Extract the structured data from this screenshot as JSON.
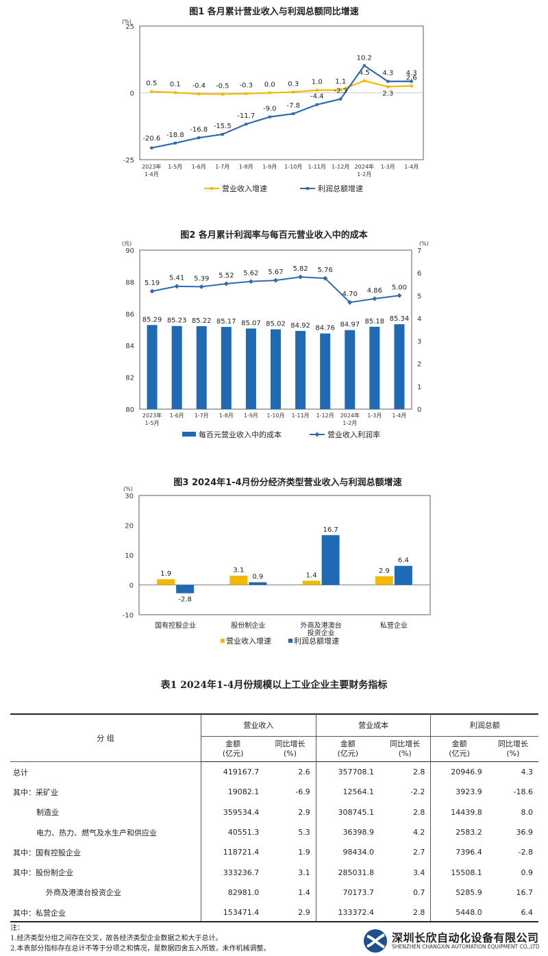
{
  "chart_data": [
    {
      "type": "line",
      "title": "图1  各月累计营业收入与利润总额同比增速",
      "ylabel": "(%)",
      "ylim": [
        -25,
        25
      ],
      "yticks": [
        "25",
        "0",
        "-25"
      ],
      "categories": [
        "2023年\n1-4月",
        "1-5月",
        "1-6月",
        "1-7月",
        "1-8月",
        "1-9月",
        "1-10月",
        "1-11月",
        "1-12月",
        "2024年\n1-2月",
        "1-3月",
        "1-4月"
      ],
      "series": [
        {
          "name": "营业收入增速",
          "color": "#f5b800",
          "values": [
            0.5,
            0.1,
            -0.4,
            -0.5,
            -0.3,
            0.0,
            0.3,
            1.0,
            1.1,
            4.5,
            2.3,
            2.6
          ],
          "labels": [
            "0.5",
            "0.1",
            "-0.4",
            "-0.5",
            "-0.3",
            "0.0",
            "0.3",
            "1.0",
            "1.1",
            "4.5",
            "2.3",
            "2.6"
          ]
        },
        {
          "name": "利润总额增速",
          "color": "#2e6aad",
          "values": [
            -20.6,
            -18.8,
            -16.8,
            -15.5,
            -11.7,
            -9.0,
            -7.8,
            -4.4,
            -2.3,
            10.2,
            4.3,
            4.3
          ],
          "labels": [
            "-20.6",
            "-18.8",
            "-16.8",
            "-15.5",
            "-11.7",
            "-9.0",
            "-7.8",
            "-4.4",
            "-2.3",
            "10.2",
            "4.3",
            "4.3"
          ]
        }
      ],
      "legend": "bottom"
    },
    {
      "type": "bar",
      "title": "图2  各月累计利润率与每百元营业收入中的成本",
      "ylabel": "(元)",
      "y2label": "(%)",
      "ylim": [
        80,
        90
      ],
      "y2lim": [
        0,
        7
      ],
      "yticks": [
        "90",
        "88",
        "86",
        "84",
        "82",
        "80"
      ],
      "y2ticks": [
        "7",
        "6",
        "5",
        "4",
        "3",
        "2",
        "1",
        "0"
      ],
      "categories": [
        "2023年\n1-5月",
        "1-6月",
        "1-7月",
        "1-8月",
        "1-9月",
        "1-10月",
        "1-11月",
        "1-12月",
        "2024年\n1-2月",
        "1-3月",
        "1-4月"
      ],
      "series": [
        {
          "name": "每百元营业收入中的成本",
          "type": "bar",
          "color": "#1f6ab5",
          "values": [
            85.29,
            85.23,
            85.22,
            85.17,
            85.07,
            85.02,
            84.92,
            84.76,
            84.97,
            85.18,
            85.34
          ],
          "labels": [
            "85.29",
            "85.23",
            "85.22",
            "85.17",
            "85.07",
            "85.02",
            "84.92",
            "84.76",
            "84.97",
            "85.18",
            "85.34"
          ]
        },
        {
          "name": "营业收入利润率",
          "type": "line",
          "axis": "right",
          "color": "#2e6aad",
          "values": [
            5.19,
            5.41,
            5.39,
            5.52,
            5.62,
            5.67,
            5.82,
            5.76,
            4.7,
            4.86,
            5.0
          ],
          "labels": [
            "5.19",
            "5.41",
            "5.39",
            "5.52",
            "5.62",
            "5.67",
            "5.82",
            "5.76",
            "4.70",
            "4.86",
            "5.00"
          ]
        }
      ],
      "legend": "bottom"
    },
    {
      "type": "bar",
      "title": "图3  2024年1-4月份分经济类型营业收入与利润总额增速",
      "ylabel": "(%)",
      "ylim": [
        -10,
        30
      ],
      "yticks": [
        "30",
        "20",
        "10",
        "0",
        "-10"
      ],
      "categories": [
        "国有控股企业",
        "股份制企业",
        "外商及港澳台\n投资企业",
        "私营企业"
      ],
      "series": [
        {
          "name": "营业收入增速",
          "color": "#f5b800",
          "values": [
            1.9,
            3.1,
            1.4,
            2.9
          ],
          "labels": [
            "1.9",
            "3.1",
            "1.4",
            "2.9"
          ]
        },
        {
          "name": "利润总额增速",
          "color": "#1f6ab5",
          "values": [
            -2.8,
            0.9,
            16.7,
            6.4
          ],
          "labels": [
            "-2.8",
            "0.9",
            "16.7",
            "6.4"
          ]
        }
      ],
      "legend": "bottom"
    }
  ],
  "table": {
    "title": "表1    2024年1-4月份规模以上工业企业主要财务指标",
    "group_header": "分    组",
    "col_groups": [
      "营业收入",
      "营业成本",
      "利润总额"
    ],
    "amount_label": "金额",
    "amount_unit": "(亿元)",
    "growth_label": "同比增长",
    "growth_unit": "(%)",
    "rows": [
      {
        "label": "总计",
        "v": [
          "419167.7",
          "2.6",
          "357708.1",
          "2.8",
          "20946.9",
          "4.3"
        ]
      },
      {
        "label": "其中：采矿业",
        "v": [
          "19082.1",
          "-6.9",
          "12564.1",
          "-2.2",
          "3923.9",
          "-18.6"
        ]
      },
      {
        "label": "制造业",
        "v": [
          "359534.4",
          "2.9",
          "308745.1",
          "2.8",
          "14439.8",
          "8.0"
        ]
      },
      {
        "label": "电力、热力、燃气及水生产和供应业",
        "v": [
          "40551.3",
          "5.3",
          "36398.9",
          "4.2",
          "2583.2",
          "36.9"
        ]
      },
      {
        "label": "其中：国有控股企业",
        "v": [
          "118721.4",
          "1.9",
          "98434.0",
          "2.7",
          "7396.4",
          "-2.8"
        ]
      },
      {
        "label": "其中：股份制企业",
        "v": [
          "333236.7",
          "3.1",
          "285031.8",
          "3.4",
          "15508.1",
          "0.9"
        ]
      },
      {
        "label": "外商及港澳台投资企业",
        "v": [
          "82981.0",
          "1.4",
          "70173.7",
          "0.7",
          "5285.9",
          "16.7"
        ]
      },
      {
        "label": "其中：私营企业",
        "v": [
          "153471.4",
          "2.9",
          "133372.4",
          "2.8",
          "5448.0",
          "6.4"
        ]
      }
    ]
  },
  "notes": {
    "head": "注：",
    "lines": [
      "1.经济类型分组之间存在交叉，故各经济类型企业数据之和大于总计。",
      "2.本表部分指标存在总计不等于分项之和情况，是数据四舍五入所致，未作机械调整。"
    ]
  },
  "logo": {
    "cn": "深圳长欣自动化设备有限公司",
    "en": "SHENZHEN CHANGXIN AUTOMATION EQUIPMENT CO.,LTD",
    "icon": "company-logo-icon",
    "color": "#1f4e8c"
  }
}
